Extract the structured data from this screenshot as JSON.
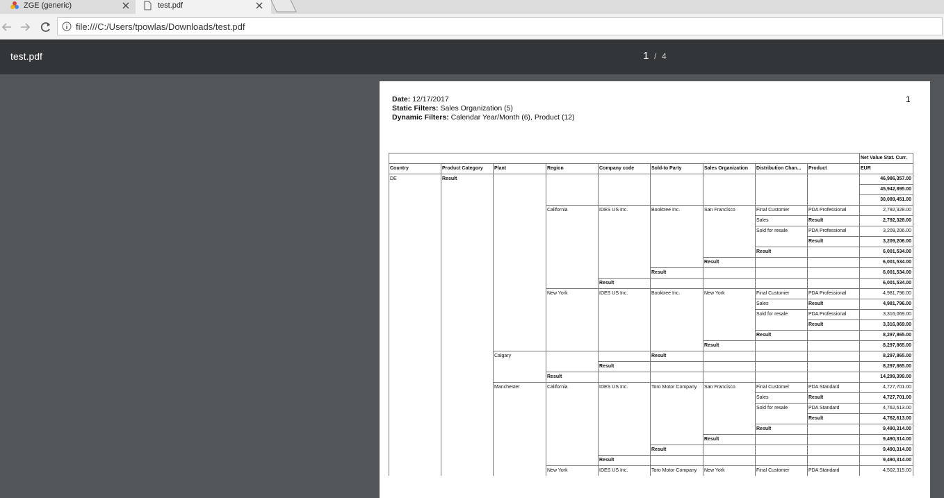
{
  "browser": {
    "tabs": [
      {
        "title": "ZGE (generic)"
      },
      {
        "title": "test.pdf"
      }
    ],
    "url": "file:///C:/Users/tpowlas/Downloads/test.pdf"
  },
  "viewer": {
    "title": "test.pdf",
    "current_page": "1",
    "separator": "/",
    "page_count": "4"
  },
  "document": {
    "page_number": "1",
    "header": [
      {
        "label": "Date:",
        "value": "12/17/2017"
      },
      {
        "label": "Static Filters:",
        "value": "Sales Organization (5)"
      },
      {
        "label": "Dynamic Filters:",
        "value": "Calendar Year/Month (6), Product (12)"
      }
    ],
    "table": {
      "measure": "Net Value Stat. Curr.",
      "columns": [
        "Country",
        "Product Category",
        "Plant",
        "Region",
        "Company code",
        "Sold-to Party",
        "Sales Organization",
        "Distribution Chan...",
        "Product",
        "EUR"
      ],
      "rows": [
        {
          "bold": true,
          "cells": [
            "DE",
            "Result",
            null,
            null,
            null,
            null,
            null,
            null,
            null,
            "46,986,357.00"
          ]
        },
        {
          "bold": true,
          "cells": [
            null,
            null,
            null,
            null,
            null,
            null,
            null,
            null,
            null,
            "45,942,895.00"
          ]
        },
        {
          "bold": true,
          "cells": [
            null,
            null,
            null,
            null,
            null,
            null,
            null,
            null,
            null,
            "30,089,451.00"
          ]
        },
        {
          "bold": false,
          "cells": [
            null,
            null,
            null,
            "California",
            "IDES US Inc.",
            "Booktree Inc.",
            "San Francisco",
            "Final Customer",
            "PDA Professional",
            "2,792,328.00"
          ]
        },
        {
          "bold": true,
          "cells": [
            null,
            null,
            null,
            null,
            null,
            null,
            null,
            "Sales",
            "Result",
            "2,792,328.00"
          ]
        },
        {
          "bold": false,
          "cells": [
            null,
            null,
            null,
            null,
            null,
            null,
            null,
            "Sold for resale",
            "PDA Professional",
            "3,209,206.00"
          ]
        },
        {
          "bold": true,
          "cells": [
            null,
            null,
            null,
            null,
            null,
            null,
            null,
            null,
            "Result",
            "3,209,206.00"
          ]
        },
        {
          "bold": true,
          "cells": [
            null,
            null,
            null,
            null,
            null,
            null,
            null,
            "Result",
            null,
            "6,001,534.00"
          ]
        },
        {
          "bold": true,
          "cells": [
            null,
            null,
            null,
            null,
            null,
            null,
            "Result",
            null,
            null,
            "6,001,534.00"
          ]
        },
        {
          "bold": true,
          "cells": [
            null,
            null,
            null,
            null,
            null,
            "Result",
            null,
            null,
            null,
            "6,001,534.00"
          ]
        },
        {
          "bold": true,
          "cells": [
            null,
            null,
            null,
            null,
            "Result",
            null,
            null,
            null,
            null,
            "6,001,534.00"
          ]
        },
        {
          "bold": false,
          "cells": [
            null,
            null,
            null,
            "New York",
            "IDES US Inc.",
            "Booktree Inc.",
            "New York",
            "Final Customer",
            "PDA Professional",
            "4,981,796.00"
          ]
        },
        {
          "bold": true,
          "cells": [
            null,
            null,
            null,
            null,
            null,
            null,
            null,
            "Sales",
            "Result",
            "4,981,796.00"
          ]
        },
        {
          "bold": false,
          "cells": [
            null,
            null,
            null,
            null,
            null,
            null,
            null,
            "Sold for resale",
            "PDA Professional",
            "3,316,069.00"
          ]
        },
        {
          "bold": true,
          "cells": [
            null,
            null,
            null,
            null,
            null,
            null,
            null,
            null,
            "Result",
            "3,316,069.00"
          ]
        },
        {
          "bold": true,
          "cells": [
            null,
            null,
            null,
            null,
            null,
            null,
            null,
            "Result",
            null,
            "8,297,865.00"
          ]
        },
        {
          "bold": true,
          "cells": [
            null,
            null,
            null,
            null,
            null,
            null,
            "Result",
            null,
            null,
            "8,297,865.00"
          ]
        },
        {
          "bold": true,
          "cells": [
            null,
            null,
            "Calgary",
            null,
            null,
            "Result",
            null,
            null,
            null,
            "8,297,865.00"
          ]
        },
        {
          "bold": true,
          "cells": [
            null,
            null,
            null,
            null,
            "Result",
            null,
            null,
            null,
            null,
            "8,297,865.00"
          ]
        },
        {
          "bold": true,
          "cells": [
            null,
            null,
            null,
            "Result",
            null,
            null,
            null,
            null,
            null,
            "14,299,399.00"
          ]
        },
        {
          "bold": false,
          "cells": [
            null,
            null,
            "Manchester",
            "California",
            "IDES US Inc.",
            "Toro Motor Company",
            "San Francisco",
            "Final Customer",
            "PDA Standard",
            "4,727,701.00"
          ]
        },
        {
          "bold": true,
          "cells": [
            null,
            null,
            null,
            null,
            null,
            null,
            null,
            "Sales",
            "Result",
            "4,727,701.00"
          ]
        },
        {
          "bold": false,
          "cells": [
            null,
            null,
            null,
            null,
            null,
            null,
            null,
            "Sold for resale",
            "PDA Standard",
            "4,762,613.00"
          ]
        },
        {
          "bold": true,
          "cells": [
            null,
            null,
            null,
            null,
            null,
            null,
            null,
            null,
            "Result",
            "4,762,613.00"
          ]
        },
        {
          "bold": true,
          "cells": [
            null,
            null,
            null,
            null,
            null,
            null,
            null,
            "Result",
            null,
            "9,490,314.00"
          ]
        },
        {
          "bold": true,
          "cells": [
            null,
            null,
            null,
            null,
            null,
            null,
            "Result",
            null,
            null,
            "9,490,314.00"
          ]
        },
        {
          "bold": true,
          "cells": [
            null,
            null,
            null,
            null,
            null,
            "Result",
            null,
            null,
            null,
            "9,490,314.00"
          ]
        },
        {
          "bold": true,
          "cells": [
            null,
            null,
            null,
            null,
            "Result",
            null,
            null,
            null,
            null,
            "9,490,314.00"
          ]
        },
        {
          "bold": false,
          "cells": [
            null,
            null,
            null,
            "New York",
            "IDES US Inc.",
            "Toro Motor Company",
            "New York",
            "Final Customer",
            "PDA Standard",
            "4,502,315.00"
          ]
        }
      ]
    }
  }
}
